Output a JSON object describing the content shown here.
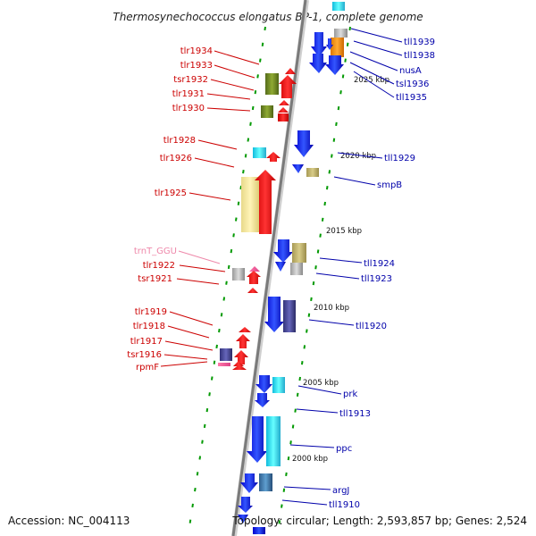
{
  "title": "Thermosynechococcus elongatus BP-1, complete genome",
  "footer": {
    "accession": "Accession: NC_004113",
    "topology": "Topology: circular; Length: 2,593,857 bp; Genes: 2,524"
  },
  "colors": {
    "left_label": "#cc0000",
    "right_label": "#0000aa",
    "trna_label": "#ee88aa",
    "backbone": "#808080",
    "tick": "#009900"
  },
  "kbp_markers": [
    "2025 kbp",
    "2020 kbp",
    "2015 kbp",
    "2010 kbp",
    "2005 kbp",
    "2000 kbp"
  ],
  "left_genes": [
    "tlr1934",
    "tlr1933",
    "tsr1932",
    "tlr1931",
    "tlr1930",
    "tlr1928",
    "tlr1926",
    "tlr1925",
    "trnT_GGU",
    "tlr1922",
    "tsr1921",
    "tlr1919",
    "tlr1918",
    "tlr1917",
    "tsr1916",
    "rpmF"
  ],
  "right_genes": [
    "tll1939",
    "tll1938",
    "nusA",
    "tsl1936",
    "tll1935",
    "tll1929",
    "smpB",
    "tll1924",
    "tll1923",
    "tll1920",
    "prk",
    "tll1913",
    "ppc",
    "argJ",
    "tll1910"
  ]
}
